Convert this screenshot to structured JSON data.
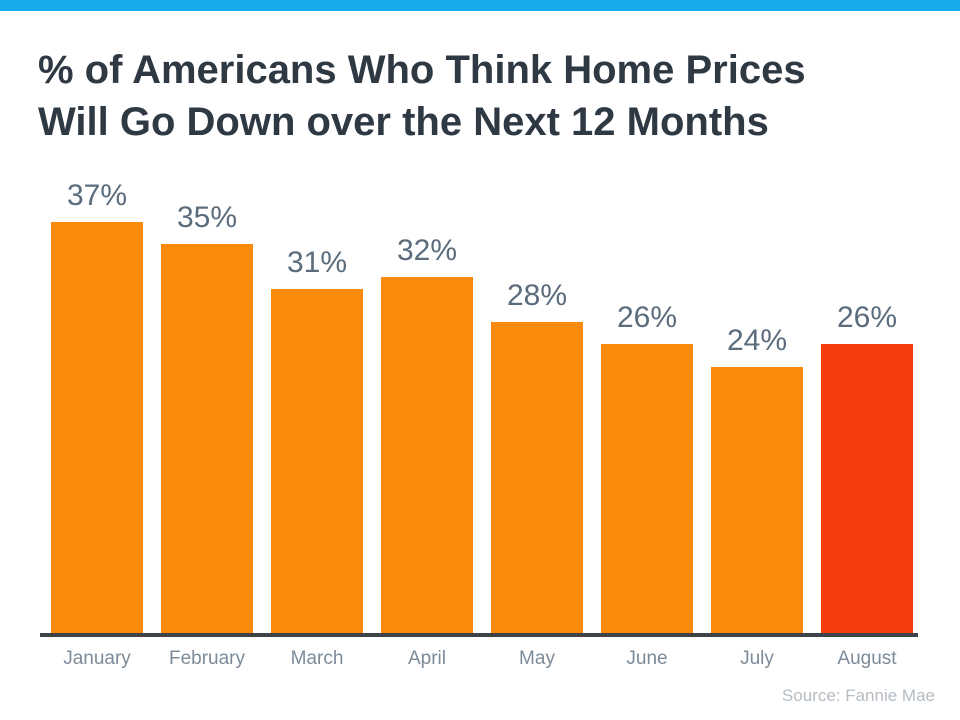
{
  "page": {
    "background_color": "#FFFFFF",
    "accent_bar_color": "#18ABEC"
  },
  "header": {
    "title_lines": [
      "% of Americans Who Think Home Prices",
      "Will Go Down over the Next 12 Months"
    ],
    "title_color": "#2F3944"
  },
  "chart_data": {
    "type": "bar",
    "title": "% of Americans Who Think Home Prices Will Go Down over the Next 12 Months",
    "categories": [
      "January",
      "February",
      "March",
      "April",
      "May",
      "June",
      "July",
      "August"
    ],
    "values": [
      37,
      35,
      31,
      32,
      28,
      26,
      24,
      26
    ],
    "value_labels": [
      "37%",
      "35%",
      "31%",
      "32%",
      "28%",
      "26%",
      "24%",
      "26%"
    ],
    "unit": "%",
    "xlabel": "",
    "ylabel": "",
    "ylim": [
      0,
      40
    ],
    "grid": false,
    "legend": "none",
    "bar_color": "#FA8A0B",
    "highlight_color": "#F53E0C",
    "highlight_index": 7,
    "axis_line_color": "#3E4349",
    "value_label_color": "#5B6C7D",
    "category_label_color": "#7C8B99"
  },
  "footer": {
    "source": "Source: Fannie Mae"
  }
}
